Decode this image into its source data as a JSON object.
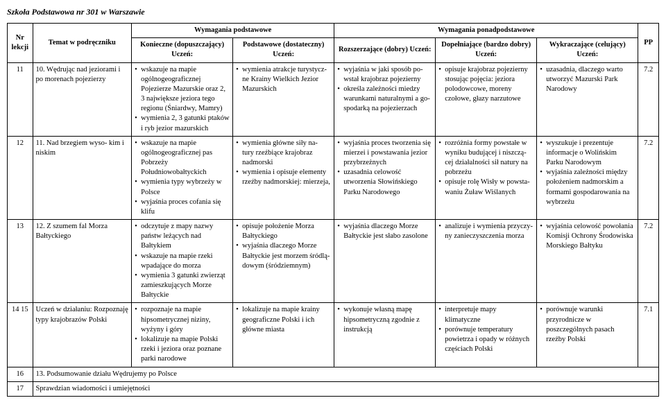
{
  "doc_title": "Szkoła Podstawowa nr 301 w Warszawie",
  "header": {
    "basic": "Wymagania podstawowe",
    "extended": "Wymagania ponadpodstawowe",
    "nr": "Nr lekcji",
    "topic": "Temat w podręczniku",
    "k": "Konieczne (dopuszczający) Uczeń:",
    "p": "Podstawowe (dostateczny) Uczeń:",
    "r": "Rozszerzające (dobry) Uczeń:",
    "d": "Dopełniające (bardzo dobry) Uczeń:",
    "w": "Wykraczające (celujący) Uczeń:",
    "pp": "PP"
  },
  "rows": [
    {
      "nr": "11",
      "topic": "10. Wędrując nad jeziorami i po morenach pojezierzy",
      "k": [
        "wskazuje na mapie ogólnogeograficznej Pojezierze Mazurskie oraz 2, 3 największe jeziora tego regionu (Śniardwy, Mamry)",
        "wymienia 2, 3 gatunki ptaków i ryb jezior mazurskich"
      ],
      "p": [
        "wymienia atrakcje turystycz- ne Krainy Wielkich Jezior Mazurskich"
      ],
      "r": [
        "wyjaśnia w jaki sposób po- wstał krajobraz pojezierny",
        "określa zależności miedzy warunkami naturalnymi a go- spodarką na pojezierzach"
      ],
      "d": [
        "opisuje krajobraz pojezierny stosując pojęcia: jeziora polodowcowe, moreny czołowe, głazy narzutowe"
      ],
      "w": [
        "uzasadnia, dlaczego warto utworzyć Mazurski Park Narodowy"
      ],
      "pp": "7.2"
    },
    {
      "nr": "12",
      "topic": "11. Nad brzegiem wyso- kim i niskim",
      "k": [
        "wskazuje na mapie ogólnogeograficznej pas Pobrzeży Południowobałtyckich",
        "wymienia typy wybrzeży w Polsce",
        "wyjaśnia proces cofania się klifu"
      ],
      "p": [
        "wymienia główne siły na- tury rzeźbiące krajobraz nadmorski",
        "wymienia i opisuje elementy rzeźby nadmorskiej: mierzeja,"
      ],
      "r": [
        "wyjaśnia proces tworzenia się mierzei i powstawania jezior przybrzeżnych",
        "uzasadnia celowość utworzenia Słowińskiego Parku Narodowego"
      ],
      "d": [
        "rozróżnia formy powstałe w wyniku budującej i niszczą- cej działalności sił natury na pobrzeżu",
        "opisuje rolę Wisły w powsta- waniu Żuław Wiślanych"
      ],
      "w": [
        "wyszukuje i prezentuje informacje o Wolińskim Parku Narodowym",
        "wyjaśnia zależności między położeniem nadmorskim a formami gospodarowania na wybrzeżu"
      ],
      "pp": "7.2"
    },
    {
      "nr": "13",
      "topic": "12. Z szumem fal Morza Bałtyckiego",
      "k": [
        "odczytuje z mapy nazwy państw leżących nad Bałtykiem",
        "wskazuje na mapie rzeki wpadające do morza",
        "wymienia 3 gatunki zwierząt zamieszkujących Morze Bałtyckie"
      ],
      "p": [
        "opisuje położenie Morza Bałtyckiego",
        "wyjaśnia dlaczego Morze Bałtyckie jest morzem śródlą- dowym (śródziemnym)"
      ],
      "r": [
        "wyjaśnia dlaczego Morze Bałtyckie jest słabo zasolone"
      ],
      "d": [
        "analizuje i wymienia przyczy- ny zanieczyszczenia morza"
      ],
      "w": [
        "wyjaśnia celowość powołania Komisji Ochrony Środowiska Morskiego Bałtyku"
      ],
      "pp": "7.2"
    },
    {
      "nr": "14 15",
      "topic": "Uczeń w działaniu: Rozpoznaję typy krajobrazów Polski",
      "k": [
        "rozpoznaje na mapie hipsometrycznej niziny, wyżyny i góry",
        "lokalizuje na mapie Polski rzeki i jeziora oraz poznane parki narodowe"
      ],
      "p": [
        "lokalizuje na mapie krainy geograficzne Polski i ich główne miasta"
      ],
      "r": [
        "wykonuje własną mapę hipsometryczną zgodnie z instrukcją"
      ],
      "d": [
        "interpretuje mapy klimatyczne",
        "porównuje temperatury powietrza i opady w różnych częściach Polski"
      ],
      "w": [
        "porównuje warunki przyrodnicze w poszczególnych pasach rzeźby Polski"
      ],
      "pp": "7.1"
    }
  ],
  "row16": {
    "nr": "16",
    "text": "13. Podsumowanie działu Wędrujemy po Polsce"
  },
  "row17": {
    "nr": "17",
    "text": "Sprawdzian wiadomości i umiejętności"
  }
}
